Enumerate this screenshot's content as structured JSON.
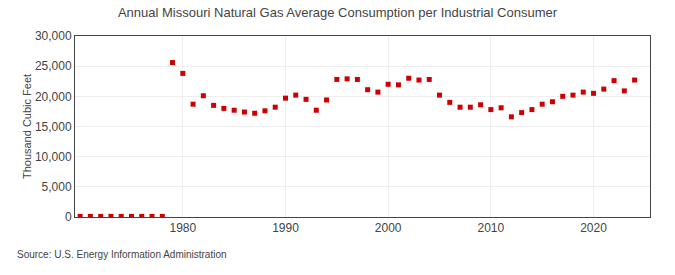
{
  "chart_data": {
    "type": "scatter",
    "title": "Annual Missouri Natural Gas Average Consumption per Industrial Consumer",
    "ylabel": "Thousand Cubic Feet",
    "annotations": [
      "Source: U.S. Energy Information Administration"
    ],
    "x": [
      1970,
      1971,
      1972,
      1973,
      1974,
      1975,
      1976,
      1977,
      1978,
      1979,
      1980,
      1981,
      1982,
      1983,
      1984,
      1985,
      1986,
      1987,
      1988,
      1989,
      1990,
      1991,
      1992,
      1993,
      1994,
      1995,
      1996,
      1997,
      1998,
      1999,
      2000,
      2001,
      2002,
      2003,
      2004,
      2005,
      2006,
      2007,
      2008,
      2009,
      2010,
      2011,
      2012,
      2013,
      2014,
      2015,
      2016,
      2017,
      2018,
      2019,
      2020,
      2021,
      2022,
      2023,
      2024
    ],
    "values": [
      100,
      100,
      100,
      100,
      100,
      100,
      100,
      100,
      100,
      25600,
      23800,
      18700,
      20100,
      18500,
      18000,
      17700,
      17400,
      17200,
      17600,
      18200,
      19700,
      20200,
      19500,
      17700,
      19400,
      22800,
      22900,
      22800,
      21100,
      20700,
      22000,
      21900,
      23000,
      22700,
      22800,
      20200,
      19000,
      18200,
      18200,
      18600,
      17800,
      18100,
      16600,
      17300,
      17800,
      18700,
      19100,
      20000,
      20200,
      20700,
      20500,
      21200,
      22600,
      20900,
      22700
    ],
    "color": "#cc0000",
    "marker": "square",
    "xlim": [
      1969.5,
      2025.5
    ],
    "xticks": [
      1980,
      1990,
      2000,
      2010,
      2020
    ],
    "ylim": [
      0,
      30000
    ],
    "yticks": [
      0,
      {
        "value": 5000,
        "label": "5,000"
      },
      {
        "value": 10000,
        "label": "10,000"
      },
      {
        "value": 15000,
        "label": "15,000"
      },
      {
        "value": 20000,
        "label": "20,000"
      },
      {
        "value": 25000,
        "label": "25,000"
      },
      {
        "value": 30000,
        "label": "30,000"
      }
    ],
    "grid": true
  }
}
